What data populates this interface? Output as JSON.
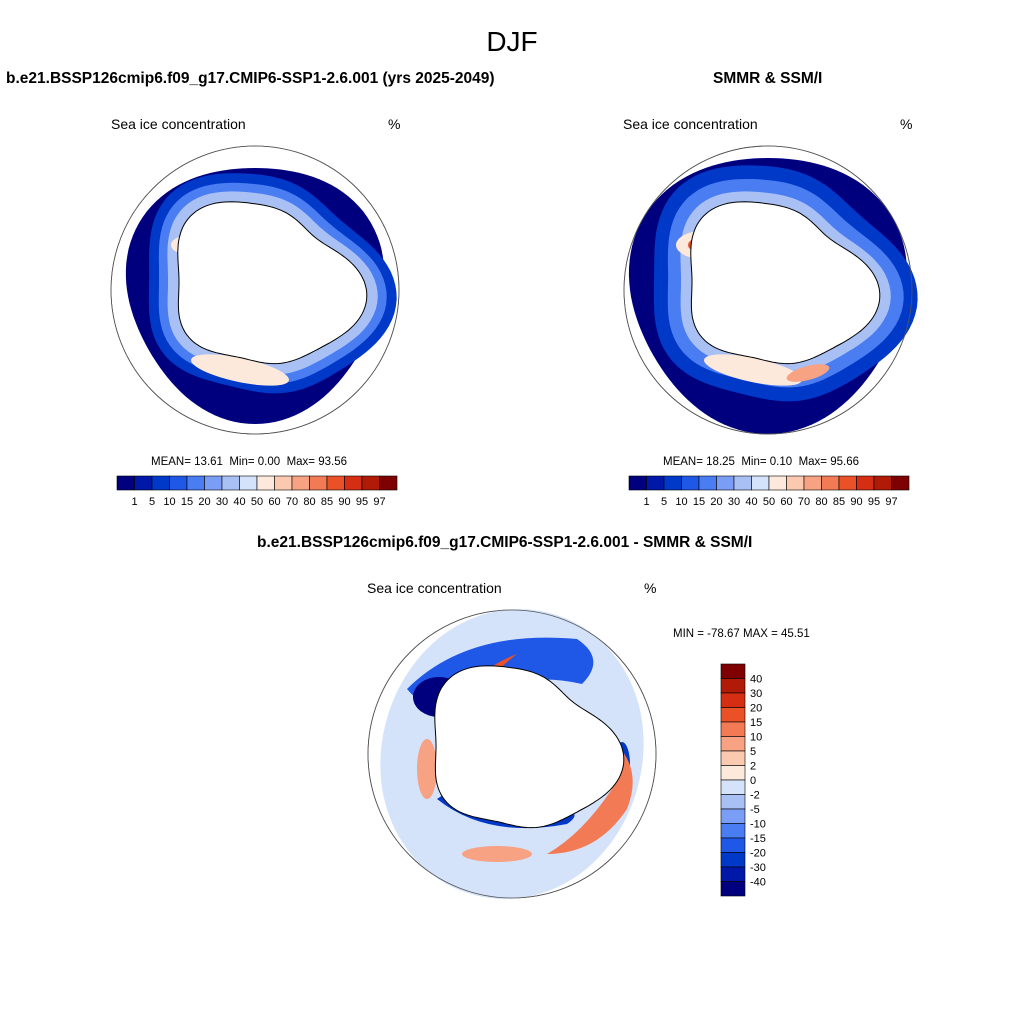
{
  "figure": {
    "season": "DJF",
    "colors": {
      "land": "#ffffff",
      "outline": "#000000",
      "grid_circle": "#555555"
    }
  },
  "panels": {
    "model": {
      "title": "b.e21.BSSP126cmip6.f09_g17.CMIP6-SSP1-2.6.001 (yrs 2025-2049)",
      "left_label": "Sea ice concentration",
      "right_label": "%",
      "stats": {
        "mean_label": "MEAN=",
        "mean": "13.61",
        "min_label": "Min=",
        "min": "0.00",
        "max_label": "Max=",
        "max": "93.56"
      },
      "features": {
        "weddell_high_ice": "medium",
        "ross_high_ice": "medium",
        "pack_width": "narrow"
      }
    },
    "obs": {
      "title": "SMMR & SSM/I",
      "left_label": "Sea ice concentration",
      "right_label": "%",
      "stats": {
        "mean_label": "MEAN=",
        "mean": "18.25",
        "min_label": "Min=",
        "min": "0.10",
        "max_label": "Max=",
        "max": "95.66"
      },
      "features": {
        "weddell_high_ice": "strong",
        "ross_high_ice": "strong",
        "pack_width": "wide"
      }
    },
    "diff": {
      "title": "b.e21.BSSP126cmip6.f09_g17.CMIP6-SSP1-2.6.001 - SMMR & SSM/I",
      "left_label": "Sea ice concentration",
      "right_label": "%",
      "minmax_text": "MIN = -78.67 MAX =  45.51"
    }
  },
  "colorbar_abs": {
    "labels": [
      "1",
      "5",
      "10",
      "15",
      "20",
      "30",
      "40",
      "50",
      "60",
      "70",
      "80",
      "85",
      "90",
      "95",
      "97"
    ],
    "colors": [
      "#00007f",
      "#0018a8",
      "#0039c8",
      "#1f57e6",
      "#4a7cf2",
      "#7a9ef5",
      "#a9c0f5",
      "#d4e3fa",
      "#fde9db",
      "#fbc9b0",
      "#f7a282",
      "#f27b56",
      "#ea5127",
      "#d52e12",
      "#b11a06",
      "#7f0000"
    ]
  },
  "colorbar_diff": {
    "labels": [
      "40",
      "30",
      "20",
      "15",
      "10",
      "5",
      "2",
      "0",
      "-2",
      "-5",
      "-10",
      "-15",
      "-20",
      "-30",
      "-40"
    ],
    "colors": [
      "#7f0000",
      "#b11a06",
      "#d52e12",
      "#ea5127",
      "#f27b56",
      "#f7a282",
      "#fbc9b0",
      "#fde9db",
      "#d4e3fa",
      "#a9c0f5",
      "#7a9ef5",
      "#4a7cf2",
      "#1f57e6",
      "#0039c8",
      "#0018a8",
      "#00007f"
    ]
  }
}
